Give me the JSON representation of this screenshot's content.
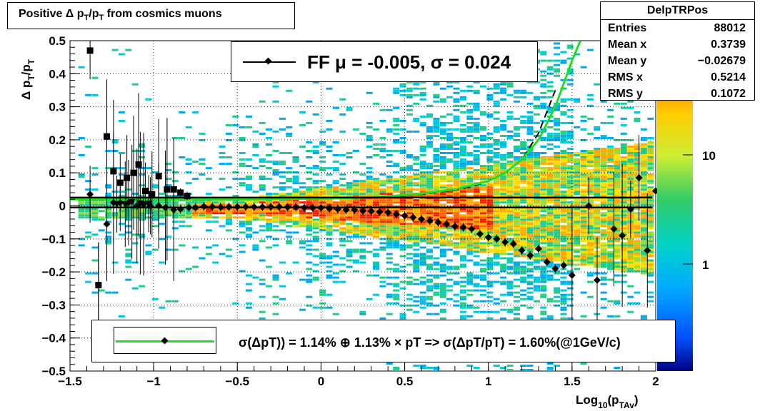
{
  "title": "Positive Δ p_T/p_T from cosmics muons",
  "stats": {
    "name": "DelpTRPos",
    "rows": [
      {
        "label": "Entries",
        "value": "88012"
      },
      {
        "label": "Mean x",
        "value": "0.3739"
      },
      {
        "label": "Mean y",
        "value": "−0.02679"
      },
      {
        "label": "RMS x",
        "value": "0.5214"
      },
      {
        "label": "RMS y",
        "value": "0.1072"
      }
    ]
  },
  "fit_legend": "FF μ = -0.005, σ =   0.024",
  "resolution_legend": "σ(ΔpT)) =  1.14% ⊕  1.13% × pT => σ(ΔpT/pT) =  1.60%(@1GeV/c)",
  "colors": {
    "fit_curve": "#22dd22",
    "markers": "#000000",
    "zero_line": "#000000"
  },
  "chart_data": {
    "type": "heatmap",
    "title": "Positive Δ p_T/p_T from cosmics muons",
    "xlabel": "Log_10(p_TAv)",
    "ylabel": "Δ p_T/p_T",
    "xlim": [
      -1.5,
      2.0
    ],
    "ylim": [
      -0.5,
      0.5
    ],
    "grid": true,
    "x_ticks": [
      "−1.5",
      "−1",
      "−0.5",
      "0",
      "0.5",
      "1",
      "1.5",
      "2"
    ],
    "y_ticks": [
      "−0.5",
      "−0.4",
      "−0.3",
      "−0.2",
      "−0.1",
      "0",
      "0.1",
      "0.2",
      "0.3",
      "0.4",
      "0.5"
    ],
    "colorbar": {
      "scale": "log",
      "labels": [
        "1",
        "10"
      ]
    },
    "series": [
      {
        "marker": "square",
        "x": [
          -1.38,
          -1.33,
          -1.28,
          -1.24,
          -1.2,
          -1.16,
          -1.12,
          -1.09,
          -1.05,
          -1.01,
          -0.97,
          -0.92,
          -0.88,
          -0.84,
          -0.8
        ],
        "y": [
          0.47,
          -0.24,
          0.21,
          0.105,
          0.07,
          0.085,
          0.1,
          0.125,
          0.045,
          0.035,
          0.09,
          0.05,
          0.05,
          0.04,
          0.03
        ]
      },
      {
        "marker": "diamond",
        "x": [
          -1.38,
          -1.33,
          -1.28,
          -1.24,
          -1.2,
          -1.15,
          -1.1,
          -1.06,
          -1.02,
          -0.97,
          -0.93,
          -0.88,
          -0.84,
          -0.79,
          -0.75,
          -0.7,
          -0.65,
          -0.6,
          -0.55,
          -0.5,
          -0.45,
          -0.4,
          -0.35,
          -0.3,
          -0.25,
          -0.2,
          -0.15,
          -0.1,
          -0.05,
          0.0,
          0.05,
          0.1,
          0.15,
          0.2,
          0.25,
          0.3,
          0.35,
          0.4,
          0.45,
          0.5,
          0.55,
          0.6,
          0.65,
          0.7,
          0.75,
          0.8,
          0.85,
          0.9,
          0.95,
          1.0,
          1.05,
          1.1,
          1.15,
          1.2,
          1.25,
          1.3,
          1.35,
          1.4,
          1.45,
          1.5,
          1.6,
          1.65,
          1.75,
          1.8,
          1.85,
          1.9,
          1.95,
          2.0
        ],
        "y": [
          0.035,
          -0.24,
          -0.055,
          0.01,
          0.01,
          0.01,
          0.0,
          0.005,
          0.0,
          0.0,
          -0.005,
          -0.012,
          -0.01,
          -0.005,
          -0.005,
          -0.002,
          -0.003,
          -0.004,
          -0.003,
          -0.003,
          -0.003,
          -0.003,
          -0.003,
          -0.003,
          -0.003,
          -0.004,
          -0.004,
          -0.005,
          -0.006,
          -0.006,
          -0.008,
          -0.01,
          -0.012,
          -0.012,
          -0.015,
          -0.016,
          -0.018,
          -0.02,
          -0.025,
          -0.03,
          -0.035,
          -0.04,
          -0.045,
          -0.05,
          -0.055,
          -0.062,
          -0.065,
          -0.07,
          -0.085,
          -0.095,
          -0.1,
          -0.11,
          -0.115,
          -0.135,
          -0.15,
          -0.13,
          -0.17,
          -0.19,
          -0.18,
          -0.21,
          0.0,
          -0.225,
          -0.07,
          -0.09,
          -0.01,
          0.085,
          -0.135,
          0.045
        ]
      },
      {
        "marker": "triangle-down",
        "x": [
          -1.22,
          -1.17,
          -1.13,
          -1.08,
          -1.03
        ],
        "y": [
          0.005,
          0.005,
          0.012,
          0.008,
          0.007
        ]
      },
      {
        "marker": "none",
        "line": "dashed",
        "x": [
          -1.4,
          -1.2,
          -1.0,
          -0.8,
          -0.6,
          -0.4,
          -0.2,
          0.0,
          0.2,
          0.4,
          0.6,
          0.8,
          0.9,
          1.0,
          1.1,
          1.2,
          1.3,
          1.4
        ],
        "y": [
          0.02,
          0.02,
          0.02,
          0.02,
          0.02,
          0.02,
          0.021,
          0.022,
          0.024,
          0.028,
          0.035,
          0.048,
          0.058,
          0.075,
          0.1,
          0.14,
          0.22,
          0.35
        ]
      },
      {
        "marker": "none",
        "line": "solid",
        "x": [
          -1.5,
          -1.0,
          -0.5,
          0.0,
          0.2,
          0.4,
          0.6,
          0.8,
          1.0,
          1.1,
          1.2,
          1.3,
          1.4,
          1.5,
          1.55
        ],
        "y": [
          0.02,
          0.02,
          0.02,
          0.022,
          0.024,
          0.029,
          0.037,
          0.05,
          0.075,
          0.1,
          0.14,
          0.2,
          0.3,
          0.44,
          0.5
        ]
      },
      {
        "marker": "none",
        "line": "solid",
        "x": [
          -1.5,
          1.98
        ],
        "y": [
          0.025,
          0.025
        ]
      },
      {
        "marker": "none",
        "line": "solid",
        "x": [
          -1.5,
          1.98
        ],
        "y": [
          -0.005,
          -0.005
        ]
      }
    ]
  }
}
